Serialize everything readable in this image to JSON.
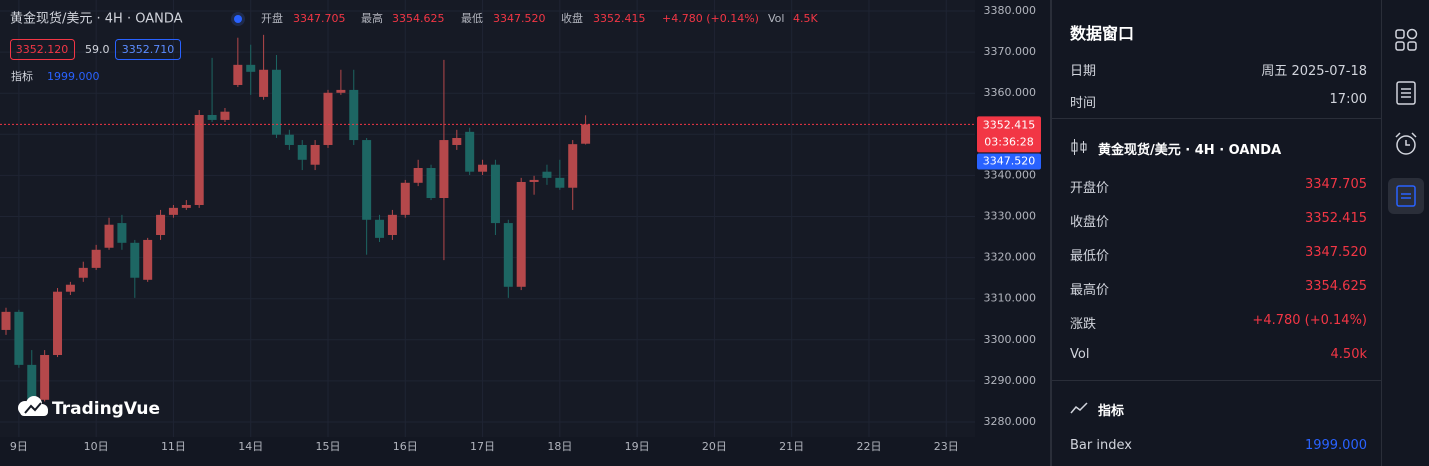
{
  "header": {
    "symbol": "黄金现货/美元 · 4H · OANDA",
    "ohlc": [
      {
        "label": "开盘",
        "value": "3347.705"
      },
      {
        "label": "最高",
        "value": "3354.625"
      },
      {
        "label": "最低",
        "value": "3347.520"
      },
      {
        "label": "收盘",
        "value": "3352.415"
      }
    ],
    "change": "+4.780 (+0.14%)",
    "vol_label": "Vol",
    "vol": "4.5K"
  },
  "badges": [
    "3352.120",
    "59.0",
    "3352.710"
  ],
  "indicator": {
    "label": "指标",
    "value": "1999.000"
  },
  "logo": "TradingVue",
  "price_tags": {
    "close": "3352.415",
    "timer": "03:36:28",
    "low": "3347.520"
  },
  "chart_data": {
    "type": "candlestick",
    "up_color": "#b5484b",
    "down_color": "#1d6663",
    "grid": true,
    "open": [
      3302.4,
      3306.8,
      3293.9,
      3285.4,
      3296.3,
      3311.7,
      3315.1,
      3317.5,
      3322.4,
      3328.4,
      3323.6,
      3314.6,
      3325.5,
      3330.4,
      3332.1,
      3332.8,
      3354.7,
      3353.5,
      3362.0,
      3366.9,
      3359.1,
      3365.7,
      3349.9,
      3347.4,
      3342.6,
      3347.4,
      3360.1,
      3360.8,
      3348.6,
      3329.2,
      3325.5,
      3330.4,
      3338.2,
      3341.8,
      3334.5,
      3347.4,
      3350.6,
      3340.9,
      3342.6,
      3328.4,
      3312.9,
      3338.4,
      3340.9,
      3339.4,
      3337.0,
      3347.705
    ],
    "high": [
      3307.8,
      3307.3,
      3297.5,
      3297.5,
      3312.6,
      3314.1,
      3319.0,
      3323.1,
      3329.7,
      3330.4,
      3324.3,
      3324.8,
      3331.6,
      3332.8,
      3334.0,
      3355.9,
      3368.6,
      3356.4,
      3373.5,
      3371.8,
      3374.2,
      3369.3,
      3351.1,
      3348.6,
      3348.6,
      3360.8,
      3365.7,
      3365.7,
      3349.1,
      3330.4,
      3331.6,
      3338.9,
      3343.8,
      3342.6,
      3368.1,
      3351.1,
      3351.6,
      3343.8,
      3343.8,
      3329.2,
      3339.4,
      3339.9,
      3342.6,
      3343.8,
      3348.6,
      3354.625
    ],
    "low": [
      3301.2,
      3293.2,
      3284.2,
      3285.0,
      3295.8,
      3310.9,
      3314.1,
      3317.0,
      3321.9,
      3321.9,
      3310.2,
      3314.1,
      3324.3,
      3329.7,
      3331.6,
      3332.1,
      3353.0,
      3353.0,
      3361.5,
      3359.6,
      3358.4,
      3349.1,
      3346.2,
      3341.3,
      3341.3,
      3346.7,
      3359.6,
      3347.4,
      3320.7,
      3323.8,
      3324.3,
      3329.7,
      3337.4,
      3334.0,
      3319.4,
      3346.2,
      3340.1,
      3340.1,
      3325.5,
      3310.2,
      3312.1,
      3335.3,
      3337.7,
      3336.5,
      3331.6,
      3347.52
    ],
    "close": [
      3306.8,
      3293.9,
      3285.4,
      3296.3,
      3311.7,
      3313.4,
      3317.5,
      3321.9,
      3328.0,
      3323.6,
      3315.1,
      3324.3,
      3330.4,
      3332.1,
      3332.8,
      3354.7,
      3353.5,
      3355.5,
      3366.9,
      3365.2,
      3365.7,
      3349.9,
      3347.4,
      3343.8,
      3347.4,
      3360.1,
      3360.8,
      3348.6,
      3329.2,
      3324.8,
      3330.4,
      3338.2,
      3341.8,
      3334.5,
      3348.6,
      3349.1,
      3340.9,
      3342.6,
      3328.4,
      3312.9,
      3338.4,
      3338.9,
      3339.4,
      3337.0,
      3347.6,
      3352.415
    ],
    "ylim": [
      3280,
      3380
    ],
    "yticks": [
      {
        "value": 3280,
        "label": "3280.000"
      },
      {
        "value": 3290,
        "label": "3290.000"
      },
      {
        "value": 3300,
        "label": "3300.000"
      },
      {
        "value": 3310,
        "label": "3310.000"
      },
      {
        "value": 3320,
        "label": "3320.000"
      },
      {
        "value": 3330,
        "label": "3330.000"
      },
      {
        "value": 3340,
        "label": "3340.000"
      },
      {
        "value": 3350,
        "label": "3350.000"
      },
      {
        "value": 3360,
        "label": "3360.000"
      },
      {
        "value": 3370,
        "label": "3370.000"
      },
      {
        "value": 3380,
        "label": "3380.000"
      }
    ],
    "xticks": [
      {
        "value": 1,
        "label": "9日"
      },
      {
        "value": 7,
        "label": "10日"
      },
      {
        "value": 13,
        "label": "11日"
      },
      {
        "value": 19,
        "label": "14日"
      },
      {
        "value": 25,
        "label": "15日"
      },
      {
        "value": 31,
        "label": "16日"
      },
      {
        "value": 37,
        "label": "17日"
      },
      {
        "value": 43,
        "label": "18日"
      },
      {
        "value": 49,
        "label": "19日"
      },
      {
        "value": 55,
        "label": "20日"
      },
      {
        "value": 61,
        "label": "21日"
      },
      {
        "value": 67,
        "label": "22日"
      },
      {
        "value": 73,
        "label": "23日"
      }
    ]
  },
  "data_window": {
    "title": "数据窗口",
    "rows": [
      [
        "日期",
        "周五 2025-07-18"
      ],
      [
        "时间",
        "17:00"
      ]
    ],
    "symbol": "黄金现货/美元 · 4H · OANDA",
    "values": [
      [
        "开盘价",
        "3347.705"
      ],
      [
        "收盘价",
        "3352.415"
      ],
      [
        "最低价",
        "3347.520"
      ],
      [
        "最高价",
        "3354.625"
      ],
      [
        "涨跌",
        "+4.780 (+0.14%)"
      ],
      [
        "Vol",
        "4.50k"
      ]
    ],
    "indicator_title": "指标",
    "indicator_rows": [
      [
        "Bar index",
        "1999.000"
      ]
    ]
  }
}
